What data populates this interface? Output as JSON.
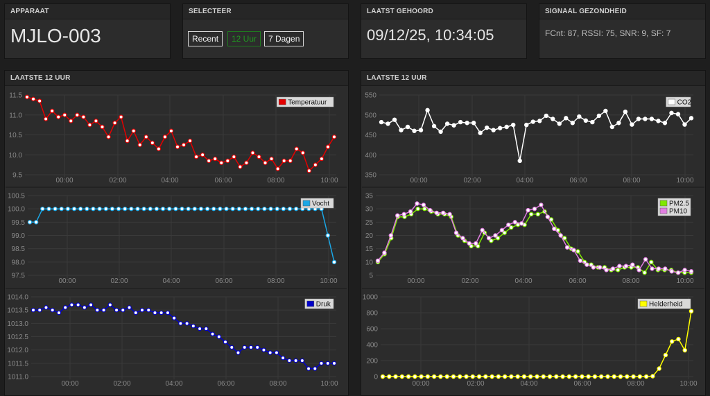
{
  "apparaat": {
    "label": "APPARAAT",
    "value": "MJLO-003"
  },
  "selecteer": {
    "label": "SELECTEER",
    "buttons": [
      "Recent",
      "12 Uur",
      "7 Dagen"
    ]
  },
  "laatst_gehoord": {
    "label": "LAATST GEHOORD",
    "value": "09/12/25, 10:34:05"
  },
  "signaal": {
    "label": "SIGNAAL GEZONDHEID",
    "value": "FCnt: 87, RSSI: 75, SNR: 9, SF: 7"
  },
  "left_panel": {
    "label": "LAATSTE 12 UUR"
  },
  "right_panel": {
    "label": "LAATSTE 12 UUR"
  },
  "chart_data": [
    {
      "type": "line",
      "x_ticks": [
        "00:00",
        "02:00",
        "04:00",
        "06:00",
        "08:00",
        "10:00"
      ],
      "ylim": [
        9.5,
        11.5
      ],
      "y_ticks": [
        "9.5",
        "10.0",
        "10.5",
        "11.0",
        "11.5"
      ],
      "series": [
        {
          "name": "Temperatuur",
          "color": "#e30000",
          "values": [
            11.45,
            11.4,
            11.35,
            10.9,
            11.1,
            10.95,
            11.0,
            10.85,
            11.0,
            10.95,
            10.75,
            10.85,
            10.7,
            10.45,
            10.8,
            10.95,
            10.35,
            10.6,
            10.25,
            10.45,
            10.3,
            10.15,
            10.45,
            10.6,
            10.2,
            10.25,
            10.35,
            9.95,
            10.0,
            9.85,
            9.9,
            9.8,
            9.85,
            9.95,
            9.7,
            9.8,
            10.05,
            9.95,
            9.8,
            9.9,
            9.65,
            9.85,
            9.85,
            10.15,
            10.05,
            9.6,
            9.75,
            9.9,
            10.2,
            10.45
          ]
        }
      ]
    },
    {
      "type": "line",
      "x_ticks": [
        "00:00",
        "02:00",
        "04:00",
        "06:00",
        "08:00",
        "10:00"
      ],
      "ylim": [
        97.5,
        100.5
      ],
      "y_ticks": [
        "97.5",
        "98.0",
        "98.5",
        "99.0",
        "99.5",
        "100.0",
        "100.5"
      ],
      "series": [
        {
          "name": "Vocht",
          "color": "#1aa7e6",
          "values": [
            99.5,
            99.5,
            100,
            100,
            100,
            100,
            100,
            100,
            100,
            100,
            100,
            100,
            100,
            100,
            100,
            100,
            100,
            100,
            100,
            100,
            100,
            100,
            100,
            100,
            100,
            100,
            100,
            100,
            100,
            100,
            100,
            100,
            100,
            100,
            100,
            100,
            100,
            100,
            100,
            100,
            100,
            100,
            100,
            100,
            100,
            100,
            100,
            99.0,
            98.0
          ]
        }
      ]
    },
    {
      "type": "line",
      "x_ticks": [
        "00:00",
        "02:00",
        "04:00",
        "06:00",
        "08:00",
        "10:00"
      ],
      "ylim": [
        1011.0,
        1014.0
      ],
      "y_ticks": [
        "1011.0",
        "1011.5",
        "1012.0",
        "1012.5",
        "1013.0",
        "1013.5",
        "1014.0"
      ],
      "series": [
        {
          "name": "Druk",
          "color": "#0000c8",
          "values": [
            1013.5,
            1013.5,
            1013.6,
            1013.5,
            1013.4,
            1013.6,
            1013.7,
            1013.7,
            1013.6,
            1013.7,
            1013.5,
            1013.5,
            1013.7,
            1013.5,
            1013.5,
            1013.6,
            1013.4,
            1013.5,
            1013.5,
            1013.4,
            1013.4,
            1013.4,
            1013.2,
            1013.0,
            1013.0,
            1012.9,
            1012.8,
            1012.8,
            1012.6,
            1012.5,
            1012.3,
            1012.1,
            1011.9,
            1012.1,
            1012.1,
            1012.1,
            1012.0,
            1011.9,
            1011.9,
            1011.7,
            1011.6,
            1011.6,
            1011.6,
            1011.3,
            1011.3,
            1011.5,
            1011.5,
            1011.5
          ]
        }
      ]
    },
    {
      "type": "line",
      "x_ticks": [
        "00:00",
        "02:00",
        "04:00",
        "06:00",
        "08:00",
        "10:00"
      ],
      "ylim": [
        350,
        550
      ],
      "y_ticks": [
        "350",
        "400",
        "450",
        "500",
        "550"
      ],
      "series": [
        {
          "name": "CO2",
          "color": "#ffffff",
          "values": [
            482,
            478,
            488,
            462,
            470,
            460,
            462,
            512,
            472,
            458,
            478,
            474,
            482,
            480,
            480,
            455,
            468,
            462,
            467,
            470,
            475,
            385,
            475,
            483,
            485,
            498,
            490,
            478,
            492,
            480,
            496,
            486,
            482,
            498,
            510,
            470,
            480,
            508,
            476,
            490,
            490,
            490,
            485,
            480,
            505,
            502,
            476,
            492
          ]
        }
      ]
    },
    {
      "type": "line",
      "x_ticks": [
        "00:00",
        "02:00",
        "04:00",
        "06:00",
        "08:00",
        "10:00"
      ],
      "ylim": [
        5,
        35
      ],
      "y_ticks": [
        "5",
        "10",
        "15",
        "20",
        "25",
        "30",
        "35"
      ],
      "series": [
        {
          "name": "PM2.5",
          "color": "#7fe800",
          "values": [
            10,
            13,
            19,
            27,
            27,
            28,
            30,
            30,
            29,
            28,
            28,
            27,
            20,
            18,
            16,
            16,
            21,
            18,
            19,
            21,
            23,
            24,
            24,
            28,
            28,
            29,
            26,
            22,
            19,
            15,
            14,
            10,
            9,
            8,
            8,
            7,
            7,
            8,
            8,
            8,
            6,
            10,
            7,
            7,
            7,
            6,
            6,
            6
          ]
        },
        {
          "name": "PM10",
          "color": "#e07ee0",
          "values": [
            10.5,
            13.5,
            20,
            27.5,
            28,
            29,
            32,
            31.5,
            29.5,
            28.5,
            28.5,
            28,
            21,
            19,
            17,
            17,
            22,
            19,
            20,
            22,
            24,
            25,
            24.5,
            29.5,
            30,
            31.5,
            27,
            22.5,
            20,
            15.5,
            14.5,
            10.5,
            9,
            8,
            8,
            7,
            7.5,
            8.5,
            8.5,
            9,
            7,
            11,
            7.5,
            7.5,
            7.5,
            6.5,
            6,
            7,
            6.5
          ]
        }
      ]
    },
    {
      "type": "line",
      "x_ticks": [
        "00:00",
        "02:00",
        "04:00",
        "06:00",
        "08:00",
        "10:00"
      ],
      "ylim": [
        0,
        1000
      ],
      "y_ticks": [
        "0",
        "200",
        "400",
        "600",
        "800",
        "1000"
      ],
      "series": [
        {
          "name": "Helderheid",
          "color": "#ffff00",
          "values": [
            0,
            0,
            0,
            0,
            0,
            0,
            0,
            0,
            0,
            0,
            0,
            0,
            0,
            0,
            0,
            0,
            0,
            0,
            0,
            0,
            0,
            0,
            0,
            0,
            0,
            0,
            0,
            0,
            0,
            0,
            0,
            0,
            0,
            0,
            0,
            0,
            0,
            0,
            0,
            0,
            0,
            0,
            5,
            100,
            270,
            440,
            470,
            330,
            820
          ]
        }
      ]
    }
  ]
}
